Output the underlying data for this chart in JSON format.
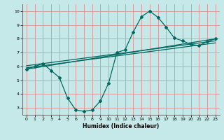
{
  "xlabel": "Humidex (Indice chaleur)",
  "background_color": "#c5e8e8",
  "grid_color": "#e09090",
  "line_color": "#006860",
  "xlim": [
    -0.5,
    23.5
  ],
  "ylim": [
    2.5,
    10.5
  ],
  "xticks": [
    0,
    1,
    2,
    3,
    4,
    5,
    6,
    7,
    8,
    9,
    10,
    11,
    12,
    13,
    14,
    15,
    16,
    17,
    18,
    19,
    20,
    21,
    22,
    23
  ],
  "yticks": [
    3,
    4,
    5,
    6,
    7,
    8,
    9,
    10
  ],
  "line1_x": [
    0,
    1,
    2,
    3,
    4,
    5,
    6,
    7,
    8,
    9,
    10,
    11,
    12,
    13,
    14,
    15,
    16,
    17,
    18,
    19,
    20,
    21,
    22,
    23
  ],
  "line1_y": [
    5.8,
    6.0,
    6.2,
    5.7,
    5.2,
    3.7,
    2.85,
    2.75,
    2.85,
    3.5,
    4.8,
    7.0,
    7.2,
    8.5,
    9.6,
    10.0,
    9.55,
    8.85,
    8.05,
    7.85,
    7.6,
    7.5,
    7.8,
    8.0
  ],
  "line2_x": [
    0,
    23
  ],
  "line2_y": [
    5.8,
    8.0
  ],
  "line3_x": [
    0,
    23
  ],
  "line3_y": [
    6.05,
    7.85
  ],
  "line4_x": [
    0,
    23
  ],
  "line4_y": [
    5.9,
    7.7
  ]
}
